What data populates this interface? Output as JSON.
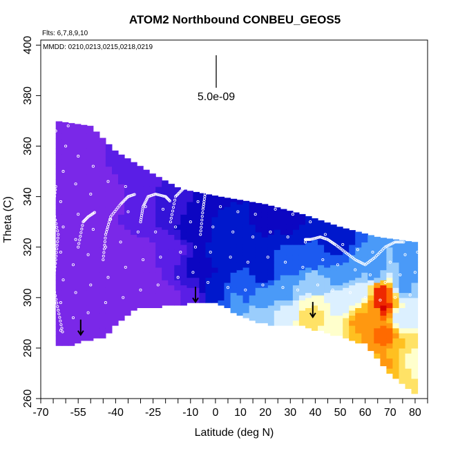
{
  "chart_data": {
    "type": "heatmap",
    "title": "ATOM2 Northbound CONBEU_GEOS5",
    "flights_note": "Flts: 6,7,8,9,10",
    "mmdd_note": "MMDD: 0210,0213,0215,0218,0219",
    "xlabel": "Latitude (deg N)",
    "ylabel": "Theta (C)",
    "xlim": [
      -70,
      85
    ],
    "ylim": [
      260,
      402
    ],
    "x_ticks": [
      -70,
      -55,
      -40,
      -25,
      -10,
      0,
      10,
      20,
      30,
      40,
      50,
      60,
      70,
      80
    ],
    "x_minor_ticks": [
      -65,
      -60,
      -50,
      -45,
      -35,
      -30,
      -20,
      -15,
      -5,
      5,
      15,
      25,
      35,
      45,
      55,
      65,
      75,
      85
    ],
    "y_ticks": [
      260,
      280,
      300,
      320,
      340,
      360,
      380,
      400
    ],
    "scale_bar_label": "5.0e-09",
    "color_scale": [
      "#8a2be2",
      "#7a28e8",
      "#5a1ee6",
      "#3414d8",
      "#0c06c2",
      "#0018cc",
      "#1c5af0",
      "#4a9af8",
      "#9acdfc",
      "#dcf0ff",
      "#ffffcc",
      "#ffe266",
      "#ffc020",
      "#ff9810",
      "#ff6a00",
      "#ee2800",
      "#d40000"
    ],
    "field_top": [
      [
        -64,
        370
      ],
      [
        -50,
        368
      ],
      [
        -40,
        358
      ],
      [
        -25,
        349
      ],
      [
        -14,
        343
      ],
      [
        2,
        340
      ],
      [
        20,
        337
      ],
      [
        35,
        333
      ],
      [
        50,
        328
      ],
      [
        65,
        324
      ],
      [
        80,
        322
      ]
    ],
    "field_bottom": [
      [
        -64,
        281
      ],
      [
        -57,
        282
      ],
      [
        -45,
        285
      ],
      [
        -32,
        296
      ],
      [
        0,
        299
      ],
      [
        10,
        293
      ],
      [
        20,
        290
      ],
      [
        35,
        289
      ],
      [
        50,
        285
      ],
      [
        60,
        282
      ],
      [
        70,
        270
      ],
      [
        80,
        262
      ]
    ],
    "field_samples": [
      {
        "x": -60,
        "y": 282,
        "v": 0.5
      },
      {
        "x": -60,
        "y": 300,
        "v": 0.5
      },
      {
        "x": -60,
        "y": 330,
        "v": 0.6
      },
      {
        "x": -60,
        "y": 365,
        "v": 0.8
      },
      {
        "x": -45,
        "y": 288,
        "v": 0.5
      },
      {
        "x": -45,
        "y": 310,
        "v": 0.6
      },
      {
        "x": -45,
        "y": 340,
        "v": 1.0
      },
      {
        "x": -45,
        "y": 362,
        "v": 1.5
      },
      {
        "x": -30,
        "y": 297,
        "v": 0.6
      },
      {
        "x": -30,
        "y": 315,
        "v": 0.8
      },
      {
        "x": -30,
        "y": 335,
        "v": 1.6
      },
      {
        "x": -30,
        "y": 350,
        "v": 2.0
      },
      {
        "x": -18,
        "y": 298,
        "v": 0.7
      },
      {
        "x": -18,
        "y": 318,
        "v": 1.8
      },
      {
        "x": -18,
        "y": 335,
        "v": 3.2
      },
      {
        "x": -15,
        "y": 345,
        "v": 2.6
      },
      {
        "x": -10,
        "y": 300,
        "v": 2.2
      },
      {
        "x": -8,
        "y": 312,
        "v": 3.6
      },
      {
        "x": -8,
        "y": 328,
        "v": 4.3
      },
      {
        "x": -5,
        "y": 342,
        "v": 3.8
      },
      {
        "x": 0,
        "y": 302,
        "v": 5.2
      },
      {
        "x": 2,
        "y": 318,
        "v": 4.8
      },
      {
        "x": 5,
        "y": 330,
        "v": 4.6
      },
      {
        "x": 8,
        "y": 299,
        "v": 6.6
      },
      {
        "x": 12,
        "y": 305,
        "v": 5.6
      },
      {
        "x": 12,
        "y": 322,
        "v": 4.6
      },
      {
        "x": 18,
        "y": 292,
        "v": 8.2
      },
      {
        "x": 20,
        "y": 300,
        "v": 7.2
      },
      {
        "x": 20,
        "y": 310,
        "v": 5.2
      },
      {
        "x": 20,
        "y": 330,
        "v": 4.4
      },
      {
        "x": 28,
        "y": 293,
        "v": 9.0
      },
      {
        "x": 28,
        "y": 302,
        "v": 7.4
      },
      {
        "x": 30,
        "y": 315,
        "v": 5.6
      },
      {
        "x": 30,
        "y": 330,
        "v": 4.4
      },
      {
        "x": 38,
        "y": 292,
        "v": 11.0
      },
      {
        "x": 40,
        "y": 296,
        "v": 10.5
      },
      {
        "x": 40,
        "y": 305,
        "v": 8.0
      },
      {
        "x": 40,
        "y": 318,
        "v": 5.5
      },
      {
        "x": 48,
        "y": 288,
        "v": 10.0
      },
      {
        "x": 50,
        "y": 298,
        "v": 8.8
      },
      {
        "x": 50,
        "y": 310,
        "v": 6.5
      },
      {
        "x": 50,
        "y": 322,
        "v": 5.0
      },
      {
        "x": 55,
        "y": 283,
        "v": 11.5
      },
      {
        "x": 58,
        "y": 290,
        "v": 12.8
      },
      {
        "x": 58,
        "y": 302,
        "v": 8.5
      },
      {
        "x": 58,
        "y": 315,
        "v": 6.6
      },
      {
        "x": 60,
        "y": 275,
        "v": 12.0
      },
      {
        "x": 62,
        "y": 285,
        "v": 13.5
      },
      {
        "x": 64,
        "y": 295,
        "v": 12.2
      },
      {
        "x": 64,
        "y": 310,
        "v": 7.2
      },
      {
        "x": 66,
        "y": 296,
        "v": 16.0
      },
      {
        "x": 67,
        "y": 302,
        "v": 15.0
      },
      {
        "x": 68,
        "y": 272,
        "v": 13.0
      },
      {
        "x": 68,
        "y": 285,
        "v": 13.8
      },
      {
        "x": 72,
        "y": 270,
        "v": 11.5
      },
      {
        "x": 75,
        "y": 280,
        "v": 11.5
      },
      {
        "x": 75,
        "y": 292,
        "v": 9.0
      },
      {
        "x": 75,
        "y": 305,
        "v": 7.2
      },
      {
        "x": 78,
        "y": 265,
        "v": 10.5
      },
      {
        "x": 80,
        "y": 275,
        "v": 9.5
      },
      {
        "x": 80,
        "y": 295,
        "v": 8.6
      },
      {
        "x": 80,
        "y": 315,
        "v": 6.5
      }
    ],
    "flight_tracks": [
      {
        "points": [
          [
            -64,
            344
          ],
          [
            -65,
            335
          ],
          [
            -63,
            325
          ],
          [
            -64,
            315
          ],
          [
            -65,
            305
          ],
          [
            -63,
            295
          ],
          [
            -61,
            285
          ]
        ]
      },
      {
        "points": [
          [
            -55,
            320
          ],
          [
            -53,
            330
          ],
          [
            -51,
            332
          ],
          [
            -48,
            334
          ]
        ]
      },
      {
        "points": [
          [
            -45,
            315
          ],
          [
            -44,
            325
          ],
          [
            -42,
            332
          ],
          [
            -38,
            337
          ],
          [
            -35,
            340
          ],
          [
            -32,
            341
          ]
        ]
      },
      {
        "points": [
          [
            -30,
            330
          ],
          [
            -29,
            336
          ],
          [
            -27,
            340
          ],
          [
            -24,
            341
          ],
          [
            -20,
            340
          ],
          [
            -18,
            338
          ]
        ]
      },
      {
        "points": [
          [
            -18,
            330
          ],
          [
            -16,
            340
          ],
          [
            -13,
            343
          ],
          [
            -10,
            346
          ],
          [
            -8,
            347
          ],
          [
            -6,
            345
          ]
        ]
      },
      {
        "points": [
          [
            -6,
            325
          ],
          [
            -5,
            335
          ],
          [
            -4,
            342
          ],
          [
            0,
            344
          ],
          [
            4,
            345
          ],
          [
            8,
            344
          ],
          [
            12,
            345
          ],
          [
            16,
            343
          ],
          [
            20,
            344
          ],
          [
            24,
            342
          ]
        ]
      },
      {
        "points": [
          [
            36,
            323
          ],
          [
            38,
            323
          ],
          [
            42,
            324
          ],
          [
            45,
            323
          ],
          [
            48,
            321
          ],
          [
            52,
            318
          ],
          [
            56,
            315
          ],
          [
            60,
            313
          ],
          [
            64,
            316
          ],
          [
            68,
            320
          ],
          [
            72,
            322
          ],
          [
            76,
            322
          ]
        ]
      }
    ],
    "scatter_points": [
      [
        -67,
        290
      ],
      [
        -66,
        300
      ],
      [
        -67,
        310
      ],
      [
        -66,
        322
      ],
      [
        -67,
        333
      ],
      [
        -66,
        345
      ],
      [
        -65,
        357
      ],
      [
        -64,
        366
      ],
      [
        -62,
        287
      ],
      [
        -62,
        298
      ],
      [
        -61,
        307
      ],
      [
        -62,
        318
      ],
      [
        -61,
        328
      ],
      [
        -62,
        338
      ],
      [
        -61,
        350
      ],
      [
        -60,
        360
      ],
      [
        -59,
        368
      ],
      [
        -57,
        292
      ],
      [
        -56,
        302
      ],
      [
        -57,
        313
      ],
      [
        -56,
        323
      ],
      [
        -55,
        333
      ],
      [
        -56,
        345
      ],
      [
        -55,
        356
      ],
      [
        -51,
        294
      ],
      [
        -50,
        305
      ],
      [
        -51,
        317
      ],
      [
        -49,
        327
      ],
      [
        -50,
        341
      ],
      [
        -49,
        352
      ],
      [
        -44,
        298
      ],
      [
        -43,
        308
      ],
      [
        -44,
        320
      ],
      [
        -42,
        331
      ],
      [
        -43,
        346
      ],
      [
        -37,
        300
      ],
      [
        -36,
        312
      ],
      [
        -38,
        322
      ],
      [
        -35,
        334
      ],
      [
        -36,
        344
      ],
      [
        -30,
        303
      ],
      [
        -29,
        315
      ],
      [
        -31,
        326
      ],
      [
        -28,
        336
      ],
      [
        -23,
        305
      ],
      [
        -22,
        316
      ],
      [
        -24,
        326
      ],
      [
        -21,
        335
      ],
      [
        -15,
        308
      ],
      [
        -14,
        318
      ],
      [
        -16,
        328
      ],
      [
        -9,
        310
      ],
      [
        -8,
        320
      ],
      [
        -10,
        330
      ],
      [
        -7,
        338
      ],
      [
        -3,
        306
      ],
      [
        -2,
        318
      ],
      [
        -1,
        328
      ],
      [
        2,
        336
      ],
      [
        5,
        304
      ],
      [
        6,
        316
      ],
      [
        7,
        326
      ],
      [
        9,
        334
      ],
      [
        12,
        303
      ],
      [
        13,
        314
      ],
      [
        15,
        324
      ],
      [
        16,
        333
      ],
      [
        19,
        305
      ],
      [
        21,
        316
      ],
      [
        22,
        326
      ],
      [
        24,
        335
      ],
      [
        27,
        304
      ],
      [
        28,
        314
      ],
      [
        29,
        324
      ],
      [
        31,
        333
      ],
      [
        33,
        303
      ],
      [
        35,
        312
      ],
      [
        36,
        322
      ],
      [
        38,
        330
      ],
      [
        41,
        305
      ],
      [
        43,
        315
      ],
      [
        44,
        325
      ],
      [
        47,
        303
      ],
      [
        49,
        313
      ],
      [
        51,
        321
      ],
      [
        54,
        302
      ],
      [
        56,
        311
      ],
      [
        57,
        319
      ],
      [
        60,
        300
      ],
      [
        62,
        309
      ],
      [
        63,
        318
      ],
      [
        66,
        299
      ],
      [
        68,
        306
      ],
      [
        70,
        314
      ],
      [
        72,
        300
      ],
      [
        74,
        309
      ],
      [
        76,
        317
      ],
      [
        78,
        301
      ],
      [
        80,
        310
      ],
      [
        81,
        318
      ],
      [
        82,
        296
      ],
      [
        82,
        305
      ]
    ],
    "arrows": [
      [
        -54,
        288
      ],
      [
        -8,
        301
      ],
      [
        39,
        295
      ]
    ]
  }
}
